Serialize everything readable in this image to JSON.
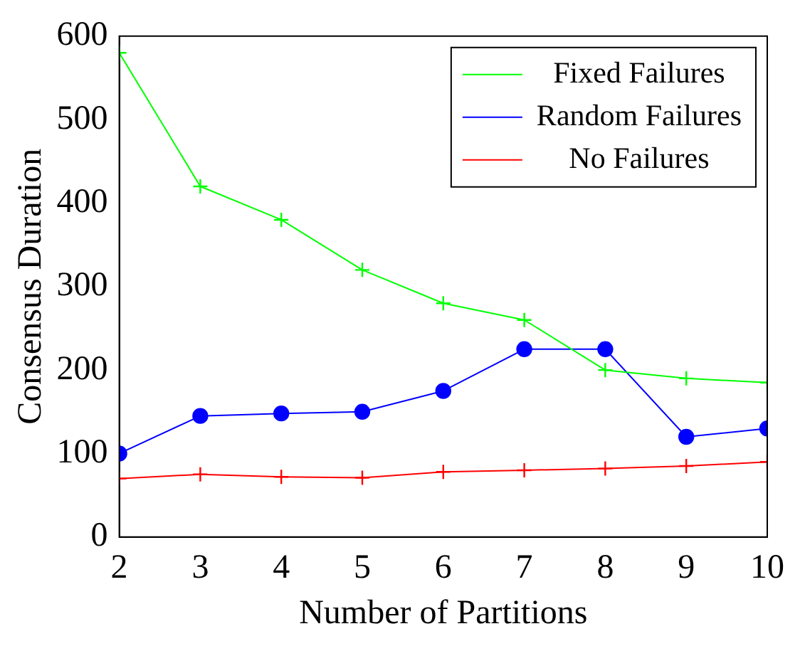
{
  "chart_data": {
    "type": "line",
    "xlabel": "Number of Partitions",
    "ylabel": "Consensus Duration",
    "x": [
      2,
      3,
      4,
      5,
      6,
      7,
      8,
      9,
      10
    ],
    "series": [
      {
        "name": "Fixed Failures",
        "color": "#00ff00",
        "marker": "cross",
        "values": [
          580,
          420,
          380,
          320,
          280,
          260,
          200,
          190,
          185
        ]
      },
      {
        "name": "Random Failures",
        "color": "#0000ff",
        "marker": "circle",
        "values": [
          100,
          145,
          148,
          150,
          175,
          225,
          225,
          120,
          130
        ]
      },
      {
        "name": "No Failures",
        "color": "#ff0000",
        "marker": "cross",
        "values": [
          70,
          75,
          72,
          71,
          78,
          80,
          82,
          85,
          90
        ]
      }
    ],
    "xlim": [
      2,
      10
    ],
    "xticks": [
      2,
      3,
      4,
      5,
      6,
      7,
      8,
      9,
      10
    ],
    "ylim": [
      0,
      600
    ],
    "yticks": [
      0,
      100,
      200,
      300,
      400,
      500,
      600
    ],
    "grid": false,
    "legend": "top right"
  }
}
